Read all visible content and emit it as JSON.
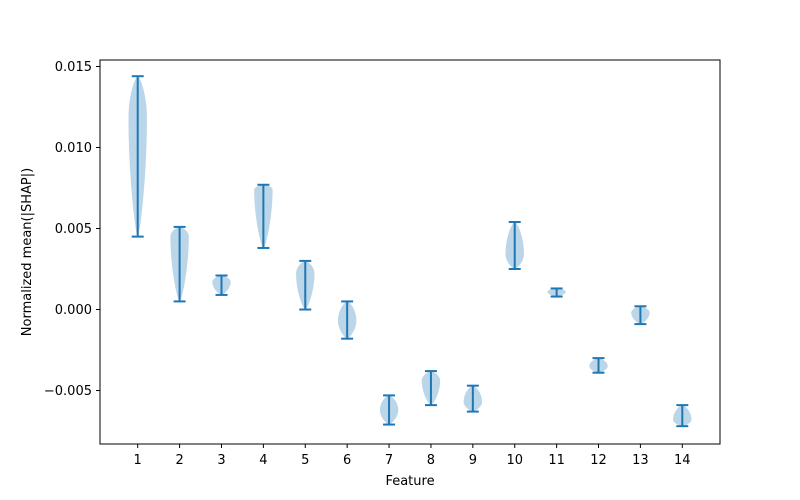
{
  "chart_data": {
    "type": "violin",
    "xlabel": "Feature",
    "ylabel": "Normalized mean(|SHAP|)",
    "ylim": [
      -0.0083,
      0.0154
    ],
    "xlim": [
      0.1,
      14.9
    ],
    "yticks": [
      -0.005,
      0.0,
      0.005,
      0.01,
      0.015
    ],
    "ytick_labels": [
      "−0.005",
      "0.000",
      "0.005",
      "0.010",
      "0.015"
    ],
    "xticks": [
      1,
      2,
      3,
      4,
      5,
      6,
      7,
      8,
      9,
      10,
      11,
      12,
      13,
      14
    ],
    "xtick_labels": [
      "1",
      "2",
      "3",
      "4",
      "5",
      "6",
      "7",
      "8",
      "9",
      "10",
      "11",
      "12",
      "13",
      "14"
    ],
    "grid": false,
    "colors": {
      "violin_fill": "#1f77b4",
      "violin_alpha": 0.3,
      "range_line": "#1f77b4"
    },
    "violins": [
      {
        "x": 1,
        "min": 0.0045,
        "max": 0.0144,
        "peak": 0.0118,
        "peak_half_width": 0.22
      },
      {
        "x": 2,
        "min": 0.0005,
        "max": 0.0051,
        "peak": 0.0045,
        "peak_half_width": 0.22
      },
      {
        "x": 3,
        "min": 0.0009,
        "max": 0.0021,
        "peak": 0.0017,
        "peak_half_width": 0.22
      },
      {
        "x": 4,
        "min": 0.0038,
        "max": 0.0077,
        "peak": 0.0074,
        "peak_half_width": 0.22
      },
      {
        "x": 5,
        "min": 0.0,
        "max": 0.003,
        "peak": 0.0022,
        "peak_half_width": 0.22
      },
      {
        "x": 6,
        "min": -0.0018,
        "max": 0.0005,
        "peak": -0.0007,
        "peak_half_width": 0.22
      },
      {
        "x": 7,
        "min": -0.0071,
        "max": -0.0053,
        "peak": -0.0062,
        "peak_half_width": 0.22
      },
      {
        "x": 8,
        "min": -0.0059,
        "max": -0.0038,
        "peak": -0.0044,
        "peak_half_width": 0.22
      },
      {
        "x": 9,
        "min": -0.0063,
        "max": -0.0047,
        "peak": -0.0057,
        "peak_half_width": 0.22
      },
      {
        "x": 10,
        "min": 0.0025,
        "max": 0.0054,
        "peak": 0.0034,
        "peak_half_width": 0.22
      },
      {
        "x": 11,
        "min": 0.0008,
        "max": 0.0013,
        "peak": 0.0011,
        "peak_half_width": 0.22
      },
      {
        "x": 12,
        "min": -0.0039,
        "max": -0.003,
        "peak": -0.0035,
        "peak_half_width": 0.22
      },
      {
        "x": 13,
        "min": -0.0009,
        "max": 0.0002,
        "peak": -0.0002,
        "peak_half_width": 0.22
      },
      {
        "x": 14,
        "min": -0.0072,
        "max": -0.0059,
        "peak": -0.0068,
        "peak_half_width": 0.22
      }
    ]
  }
}
